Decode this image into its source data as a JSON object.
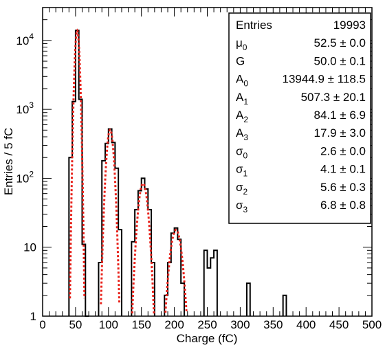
{
  "chart_data": {
    "type": "histogram",
    "xlabel": "Charge (fC)",
    "ylabel": "Entries / 5 fC",
    "xlim": [
      0,
      500
    ],
    "ylim": [
      1,
      30000
    ],
    "log_y": true,
    "bin_width": 5,
    "x_ticks": [
      0,
      50,
      100,
      150,
      200,
      250,
      300,
      350,
      400,
      450,
      500
    ],
    "y_ticks": [
      {
        "value": 1,
        "label": "1"
      },
      {
        "value": 10,
        "label": "10"
      },
      {
        "value": 100,
        "label": "10",
        "exp": "2"
      },
      {
        "value": 1000,
        "label": "10",
        "exp": "3"
      },
      {
        "value": 10000,
        "label": "10",
        "exp": "4"
      }
    ],
    "histogram": {
      "color": "#000000",
      "bins": [
        [
          40,
          200
        ],
        [
          45,
          1300
        ],
        [
          50,
          14000
        ],
        [
          55,
          1400
        ],
        [
          60,
          11
        ],
        [
          65,
          1
        ],
        [
          85,
          6
        ],
        [
          90,
          180
        ],
        [
          95,
          320
        ],
        [
          100,
          520
        ],
        [
          105,
          330
        ],
        [
          110,
          140
        ],
        [
          115,
          18
        ],
        [
          135,
          12
        ],
        [
          140,
          35
        ],
        [
          145,
          66
        ],
        [
          150,
          100
        ],
        [
          155,
          70
        ],
        [
          160,
          35
        ],
        [
          165,
          6
        ],
        [
          185,
          2
        ],
        [
          190,
          6
        ],
        [
          195,
          16
        ],
        [
          200,
          19
        ],
        [
          205,
          13
        ],
        [
          210,
          3
        ],
        [
          245,
          9
        ],
        [
          250,
          5
        ],
        [
          255,
          7
        ],
        [
          260,
          9
        ],
        [
          310,
          3
        ],
        [
          365,
          2
        ]
      ]
    },
    "fit": {
      "color": "#e8211a",
      "style": "dotted",
      "peaks": [
        {
          "mu": 52.5,
          "amplitude": 13944.9,
          "sigma": 2.6
        },
        {
          "mu": 102.5,
          "amplitude": 507.3,
          "sigma": 4.1
        },
        {
          "mu": 152.5,
          "amplitude": 84.1,
          "sigma": 5.6
        },
        {
          "mu": 202.5,
          "amplitude": 17.9,
          "sigma": 6.8
        }
      ]
    },
    "stats_box": {
      "position": "top-right",
      "rows": [
        {
          "label": "Entries",
          "sub": "",
          "value": "19993"
        },
        {
          "label": "μ",
          "sub": "0",
          "value": "52.5 ± 0.0"
        },
        {
          "label": "G",
          "sub": "",
          "value": "50.0 ± 0.1"
        },
        {
          "label": "A",
          "sub": "0",
          "value": "13944.9 ± 118.5"
        },
        {
          "label": "A",
          "sub": "1",
          "value": "507.3 ± 20.1"
        },
        {
          "label": "A",
          "sub": "2",
          "value": "84.1 ± 6.9"
        },
        {
          "label": "A",
          "sub": "3",
          "value": "17.9 ± 3.0"
        },
        {
          "label": "σ",
          "sub": "0",
          "value": "2.6 ± 0.0"
        },
        {
          "label": "σ",
          "sub": "1",
          "value": "4.1 ± 0.1"
        },
        {
          "label": "σ",
          "sub": "2",
          "value": "5.6 ± 0.3"
        },
        {
          "label": "σ",
          "sub": "3",
          "value": "6.8 ± 0.8"
        }
      ]
    }
  }
}
